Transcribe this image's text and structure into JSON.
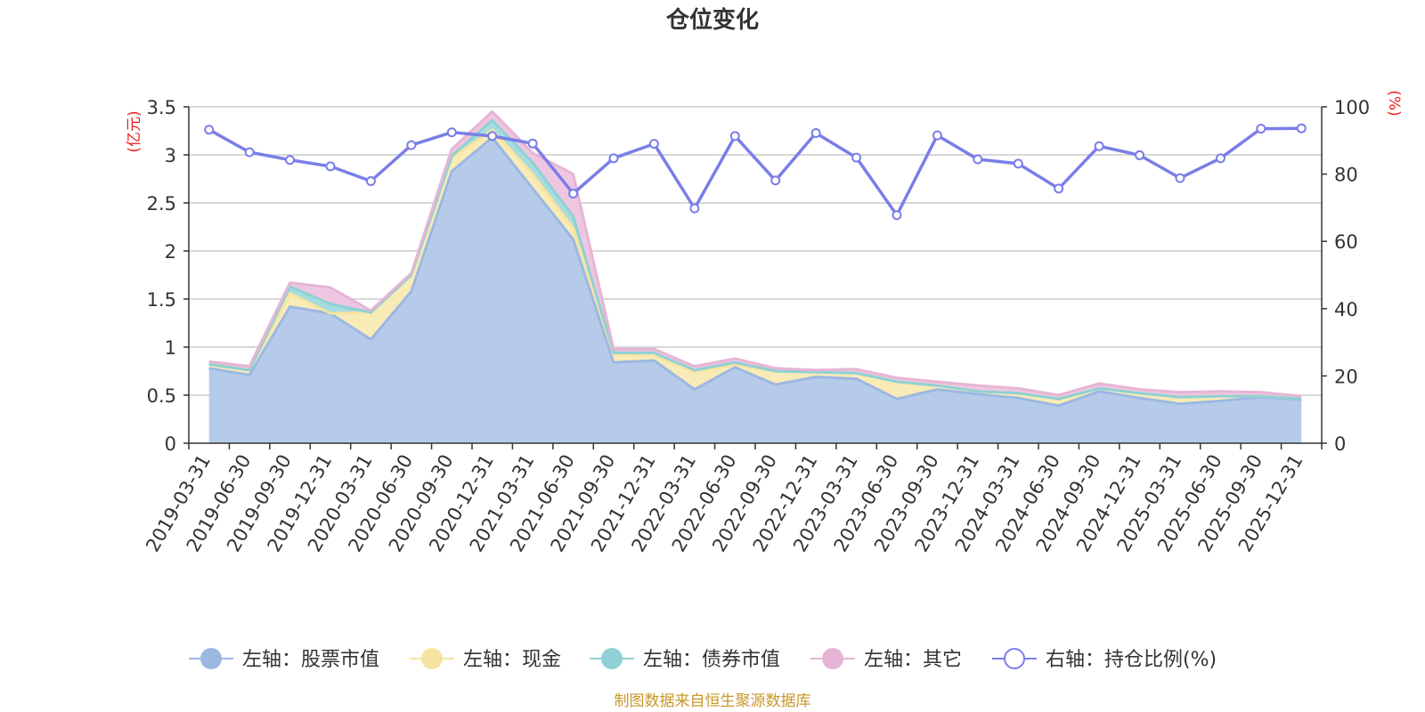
{
  "chart_data": {
    "type": "area+line",
    "title": "仓位变化",
    "categories": [
      "2019-03-31",
      "2019-06-30",
      "2019-09-30",
      "2019-12-31",
      "2020-03-31",
      "2020-06-30",
      "2020-09-30",
      "2020-12-31",
      "2021-03-31",
      "2021-06-30",
      "2021-09-30",
      "2021-12-31",
      "2022-03-31",
      "2022-06-30",
      "2022-09-30",
      "2022-12-31",
      "2023-03-31",
      "2023-06-30",
      "2023-09-30",
      "2023-12-31",
      "2024-03-31",
      "2024-06-30",
      "2024-09-30",
      "2024-12-31",
      "2025-03-31",
      "2025-06-30",
      "2025-09-30",
      "2025-12-31"
    ],
    "left_axis": {
      "unit": "(亿元)",
      "ylim": [
        0,
        3.5
      ],
      "ticks": [
        "0",
        "0.5",
        "1",
        "1.5",
        "2",
        "2.5",
        "3",
        "3.5"
      ]
    },
    "right_axis": {
      "unit": "(%)",
      "ylim": [
        0,
        100
      ],
      "ticks": [
        "0",
        "20",
        "40",
        "60",
        "80",
        "100"
      ]
    },
    "series": [
      {
        "name": "左轴：股票市值",
        "axis": "left",
        "kind": "area",
        "color": "#9cb8e2",
        "fill": "#b6cbea",
        "values": [
          0.78,
          0.71,
          1.42,
          1.35,
          1.08,
          1.58,
          2.83,
          3.18,
          2.65,
          2.12,
          0.84,
          0.86,
          0.56,
          0.79,
          0.61,
          0.69,
          0.67,
          0.46,
          0.56,
          0.51,
          0.47,
          0.39,
          0.54,
          0.47,
          0.41,
          0.44,
          0.48,
          0.45
        ]
      },
      {
        "name": "左轴：现金",
        "axis": "left",
        "kind": "area",
        "color": "#f6e3a1",
        "fill": "#f9ebb6",
        "values": [
          0.04,
          0.05,
          0.14,
          0.0,
          0.28,
          0.17,
          0.14,
          0.08,
          0.15,
          0.12,
          0.08,
          0.06,
          0.18,
          0.03,
          0.14,
          0.05,
          0.06,
          0.18,
          0.04,
          0.03,
          0.05,
          0.07,
          0.03,
          0.05,
          0.07,
          0.05,
          0.01,
          0.01
        ]
      },
      {
        "name": "左轴：债券市值",
        "axis": "left",
        "kind": "area",
        "color": "#8fd1d4",
        "fill": "#a6dcde",
        "values": [
          0.0,
          0.0,
          0.07,
          0.1,
          0.0,
          0.0,
          0.02,
          0.1,
          0.12,
          0.12,
          0.02,
          0.02,
          0.02,
          0.02,
          0.0,
          0.0,
          0.0,
          0.0,
          0.0,
          0.0,
          0.0,
          0.0,
          0.0,
          0.0,
          0.0,
          0.0,
          0.0,
          0.0
        ]
      },
      {
        "name": "左轴：其它",
        "axis": "left",
        "kind": "area",
        "color": "#e6b5d6",
        "fill": "#efc6e1",
        "values": [
          0.03,
          0.04,
          0.04,
          0.17,
          0.02,
          0.02,
          0.07,
          0.09,
          0.1,
          0.44,
          0.04,
          0.04,
          0.04,
          0.04,
          0.03,
          0.02,
          0.04,
          0.04,
          0.04,
          0.06,
          0.05,
          0.04,
          0.05,
          0.04,
          0.05,
          0.05,
          0.04,
          0.03
        ]
      },
      {
        "name": "右轴：持仓比例(%)",
        "axis": "right",
        "kind": "line",
        "color": "#7a7ee8",
        "values": [
          93.2,
          86.5,
          84.2,
          82.3,
          77.9,
          88.6,
          92.4,
          91.3,
          89.1,
          74.2,
          84.7,
          89.0,
          69.8,
          91.3,
          78.1,
          92.2,
          84.9,
          67.8,
          91.5,
          84.4,
          83.1,
          75.7,
          88.3,
          85.6,
          78.8,
          84.7,
          93.5,
          93.6
        ]
      }
    ],
    "grid": true,
    "legend_position": "bottom",
    "source_note": "制图数据来自恒生聚源数据库"
  },
  "colors": {
    "axis_unit": "#e8201e",
    "source": "#c9972b",
    "grid": "#cccccc"
  }
}
